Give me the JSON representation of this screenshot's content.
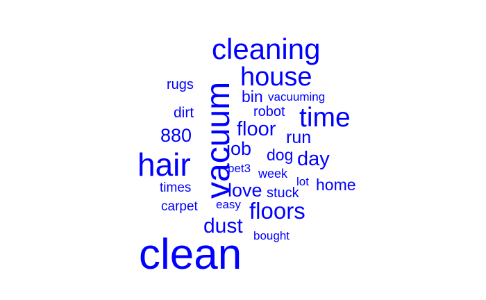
{
  "word_color": "#0000ff",
  "words": {
    "clean": "clean",
    "cleaning": "cleaning",
    "vacuum": "vacuum",
    "hair": "hair",
    "house": "house",
    "time": "time",
    "floors": "floors",
    "dust": "dust",
    "floor": "floor",
    "n880": "880",
    "job": "job",
    "day": "day",
    "love": "love",
    "run": "run",
    "home": "home",
    "bin": "bin",
    "dog": "dog",
    "dirt": "dirt",
    "robot": "robot",
    "stuck": "stuck",
    "rugs": "rugs",
    "times": "times",
    "carpet": "carpet",
    "week": "week",
    "bought": "bought",
    "vacuuming": "vacuuming",
    "easy": "easy",
    "pet3": "pet3",
    "lot": "lot"
  }
}
